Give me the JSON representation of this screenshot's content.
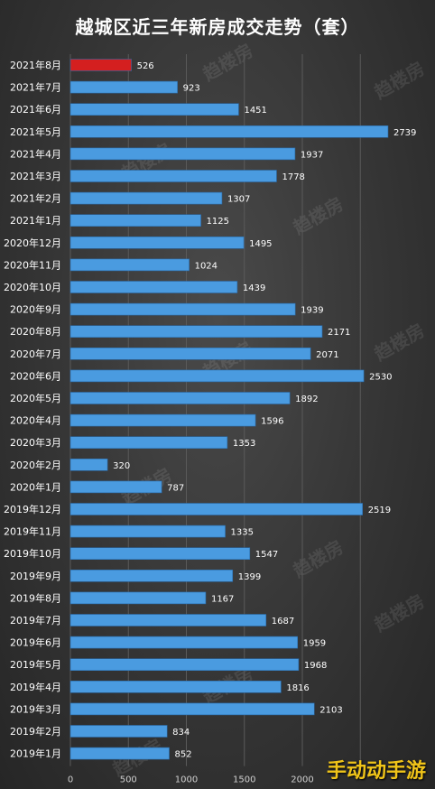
{
  "chart_data": {
    "type": "bar",
    "orientation": "horizontal",
    "title": "越城区近三年新房成交走势（套）",
    "categories": [
      "2021年8月",
      "2021年7月",
      "2021年6月",
      "2021年5月",
      "2021年4月",
      "2021年3月",
      "2021年2月",
      "2021年1月",
      "2020年12月",
      "2020年11月",
      "2020年10月",
      "2020年9月",
      "2020年8月",
      "2020年7月",
      "2020年6月",
      "2020年5月",
      "2020年4月",
      "2020年3月",
      "2020年2月",
      "2020年1月",
      "2019年12月",
      "2019年11月",
      "2019年10月",
      "2019年9月",
      "2019年8月",
      "2019年7月",
      "2019年6月",
      "2019年5月",
      "2019年4月",
      "2019年3月",
      "2019年2月",
      "2019年1月"
    ],
    "values": [
      526,
      923,
      1451,
      2739,
      1937,
      1778,
      1307,
      1125,
      1495,
      1024,
      1439,
      1939,
      2171,
      2071,
      2530,
      1892,
      1596,
      1353,
      320,
      787,
      2519,
      1335,
      1547,
      1399,
      1167,
      1687,
      1959,
      1968,
      1816,
      2103,
      834,
      852
    ],
    "highlight_index": 0,
    "xlim": [
      0,
      2700
    ],
    "xticks": [
      0,
      500,
      1000,
      1500,
      2000
    ],
    "grid": true,
    "colors": {
      "bar": "#4a9be0",
      "bar_highlight": "#d41f1f",
      "grid": "#5a5a5a"
    }
  },
  "watermark": {
    "text": "趋楼房",
    "subtext": "QULIAOFANG"
  },
  "corner_logo": "手动动手游"
}
